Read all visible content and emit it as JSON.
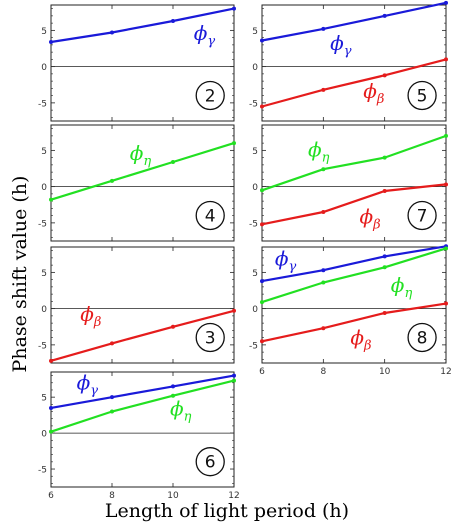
{
  "axis_labels": {
    "y": "Phase shift value  (h)",
    "x": "Length of light period (h)"
  },
  "series_styles": {
    "gamma": {
      "color": "#1a1ad9",
      "symbol": "ϕ",
      "subscript": "γ"
    },
    "beta": {
      "color": "#e51c1c",
      "symbol": "ϕ",
      "subscript": "β"
    },
    "eta": {
      "color": "#22e022",
      "symbol": "ϕ",
      "subscript": "η"
    }
  },
  "chart_data": [
    {
      "type": "line",
      "panel_id": "2",
      "x": [
        6,
        8,
        10,
        12
      ],
      "xlim": [
        6,
        12
      ],
      "ylim": [
        -7.5,
        8.5
      ],
      "yticks": [
        "5",
        "0",
        "-5"
      ],
      "xticks": [
        "",
        "",
        "",
        ""
      ],
      "series": [
        {
          "name": "ϕγ",
          "key": "gamma",
          "values": [
            3.4,
            4.7,
            6.3,
            8.0
          ]
        }
      ]
    },
    {
      "type": "line",
      "panel_id": "5",
      "x": [
        6,
        8,
        10,
        12
      ],
      "xlim": [
        6,
        12
      ],
      "ylim": [
        -7.5,
        8.5
      ],
      "yticks": [
        "5",
        "0",
        "-5"
      ],
      "xticks": [
        "",
        "",
        "",
        ""
      ],
      "series": [
        {
          "name": "ϕγ",
          "key": "gamma",
          "values": [
            3.6,
            5.2,
            7.0,
            8.8
          ]
        },
        {
          "name": "ϕβ",
          "key": "beta",
          "values": [
            -5.5,
            -3.2,
            -1.2,
            1.0
          ]
        }
      ]
    },
    {
      "type": "line",
      "panel_id": "4",
      "x": [
        6,
        8,
        10,
        12
      ],
      "xlim": [
        6,
        12
      ],
      "ylim": [
        -7.5,
        8.5
      ],
      "yticks": [
        "5",
        "0",
        "-5"
      ],
      "xticks": [
        "",
        "",
        "",
        ""
      ],
      "series": [
        {
          "name": "ϕη",
          "key": "eta",
          "values": [
            -1.8,
            0.8,
            3.4,
            6.0
          ]
        }
      ]
    },
    {
      "type": "line",
      "panel_id": "7",
      "x": [
        6,
        8,
        10,
        12
      ],
      "xlim": [
        6,
        12
      ],
      "ylim": [
        -7.5,
        8.5
      ],
      "yticks": [
        "5",
        "0",
        "-5"
      ],
      "xticks": [
        "",
        "",
        "",
        ""
      ],
      "series": [
        {
          "name": "ϕη",
          "key": "eta",
          "values": [
            -0.5,
            2.4,
            4.0,
            7.0
          ]
        },
        {
          "name": "ϕβ",
          "key": "beta",
          "values": [
            -5.2,
            -3.5,
            -0.6,
            0.3
          ]
        }
      ]
    },
    {
      "type": "line",
      "panel_id": "3",
      "x": [
        6,
        8,
        10,
        12
      ],
      "xlim": [
        6,
        12
      ],
      "ylim": [
        -7.5,
        8.5
      ],
      "yticks": [
        "5",
        "0",
        "-5"
      ],
      "xticks": [
        "",
        "",
        "",
        ""
      ],
      "series": [
        {
          "name": "ϕβ",
          "key": "beta",
          "values": [
            -7.2,
            -4.8,
            -2.5,
            -0.3
          ]
        }
      ]
    },
    {
      "type": "line",
      "panel_id": "8",
      "x": [
        6,
        8,
        10,
        12
      ],
      "xlim": [
        6,
        12
      ],
      "ylim": [
        -7.5,
        8.5
      ],
      "yticks": [
        "5",
        "0",
        "-5"
      ],
      "xticks": [
        "6",
        "8",
        "10",
        "12"
      ],
      "series": [
        {
          "name": "ϕγ",
          "key": "gamma",
          "values": [
            3.8,
            5.3,
            7.2,
            8.6
          ]
        },
        {
          "name": "ϕη",
          "key": "eta",
          "values": [
            0.9,
            3.6,
            5.7,
            8.3
          ]
        },
        {
          "name": "ϕβ",
          "key": "beta",
          "values": [
            -4.5,
            -2.7,
            -0.6,
            0.7
          ]
        }
      ]
    },
    {
      "type": "line",
      "panel_id": "6",
      "x": [
        6,
        8,
        10,
        12
      ],
      "xlim": [
        6,
        12
      ],
      "ylim": [
        -7.5,
        8.5
      ],
      "yticks": [
        "5",
        "0",
        "-5"
      ],
      "xticks": [
        "6",
        "8",
        "10",
        "12"
      ],
      "series": [
        {
          "name": "ϕγ",
          "key": "gamma",
          "values": [
            3.5,
            5.0,
            6.5,
            8.0
          ]
        },
        {
          "name": "ϕη",
          "key": "eta",
          "values": [
            0.2,
            3.0,
            5.2,
            7.3
          ]
        }
      ]
    }
  ]
}
